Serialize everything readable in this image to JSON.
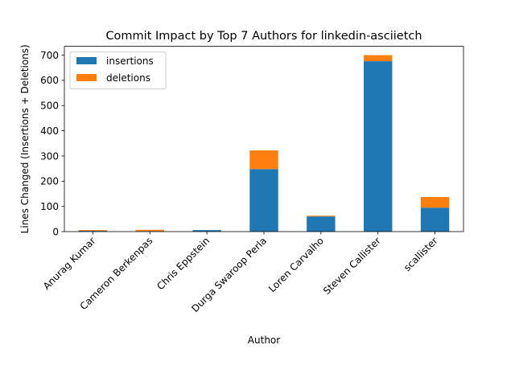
{
  "chart_data": {
    "type": "bar",
    "stacked": true,
    "title": "Commit Impact by Top 7 Authors for linkedin-asciietch",
    "xlabel": "Author",
    "ylabel": "Lines Changed (Insertions + Deletions)",
    "categories": [
      "Anurag Kumar",
      "Cameron Berkenpas",
      "Chris Eppstein",
      "Durga Swaroop Perla",
      "Loren Carvalho",
      "Steven Callister",
      "scallister"
    ],
    "series": [
      {
        "name": "insertions",
        "color": "#1f77b4",
        "values": [
          3,
          2,
          6,
          248,
          60,
          676,
          95
        ]
      },
      {
        "name": "deletions",
        "color": "#ff7f0e",
        "values": [
          3,
          5,
          0,
          74,
          3,
          24,
          42
        ]
      }
    ],
    "ylim": [
      0,
      735
    ],
    "yticks": [
      0,
      100,
      200,
      300,
      400,
      500,
      600,
      700
    ],
    "legend": "top-left",
    "grid": false
  }
}
